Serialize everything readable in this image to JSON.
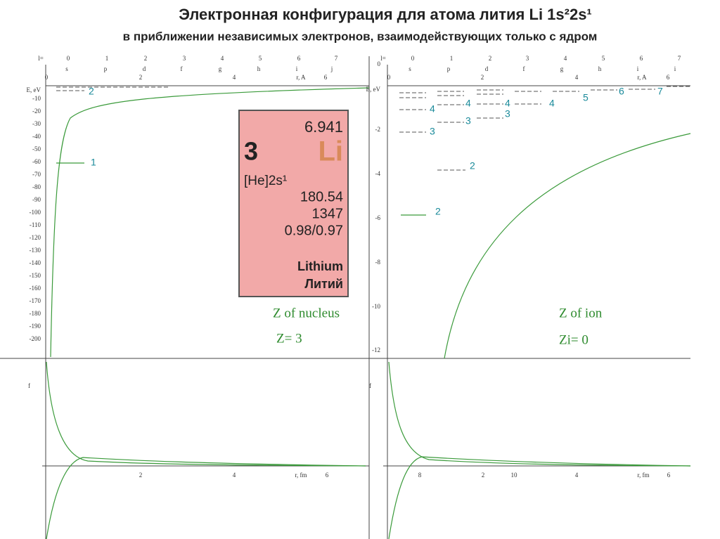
{
  "header": {
    "title": "Электронная конфигурация для атома лития Li  1s²2s¹",
    "subtitle": "в приближении независимых электронов, взаимодействующих только с ядром"
  },
  "left": {
    "l_row": [
      "l=",
      "0",
      "1",
      "2",
      "3",
      "4",
      "5",
      "6",
      "7"
    ],
    "letters": [
      "s",
      "p",
      "d",
      "f",
      "g",
      "h",
      "i",
      "j"
    ],
    "r_top": [
      "0",
      "2",
      "4",
      "r, A",
      "6"
    ],
    "e_axis": [
      "E, eV",
      "-10",
      "-20",
      "-30",
      "-40",
      "-50",
      "-60",
      "-70",
      "-80",
      "-90",
      "-100",
      "-110",
      "-120",
      "-130",
      "-140",
      "-150",
      "-160",
      "-170",
      "-180",
      "-190",
      "-200"
    ],
    "levels": [
      "2",
      "1"
    ],
    "r_bottom": [
      "2",
      "4",
      "r, fm",
      "6"
    ],
    "f": "f",
    "note1": "Z of nucleus",
    "note2": "Z=  3"
  },
  "card": {
    "mass": "6.941",
    "number": "3",
    "symbol": "Li",
    "config": "[He]2s¹",
    "v1": "180.54",
    "v2": "1347",
    "v3": "0.98/0.97",
    "name_en": "Lithium",
    "name_ru": "Литий"
  },
  "right": {
    "l_row": [
      "l=",
      "0",
      "1",
      "2",
      "3",
      "4",
      "5",
      "6",
      "7"
    ],
    "letters": [
      "s",
      "p",
      "d",
      "f",
      "g",
      "h",
      "i",
      "i"
    ],
    "r_top": [
      "0",
      "2",
      "4",
      "r, A",
      "6"
    ],
    "e_axis": [
      "0",
      "E, eV",
      "-2",
      "-4",
      "-6",
      "-8",
      "-10",
      "-12"
    ],
    "levels": [
      "2",
      "2",
      "3",
      "3",
      "3",
      "4",
      "4",
      "4",
      "4",
      "5",
      "6",
      "7"
    ],
    "r_bottom": [
      "8",
      "2",
      "10",
      "4",
      "r, fm",
      "6"
    ],
    "f": "f",
    "note1": "Z of ion",
    "note2": "Zi=  0"
  }
}
